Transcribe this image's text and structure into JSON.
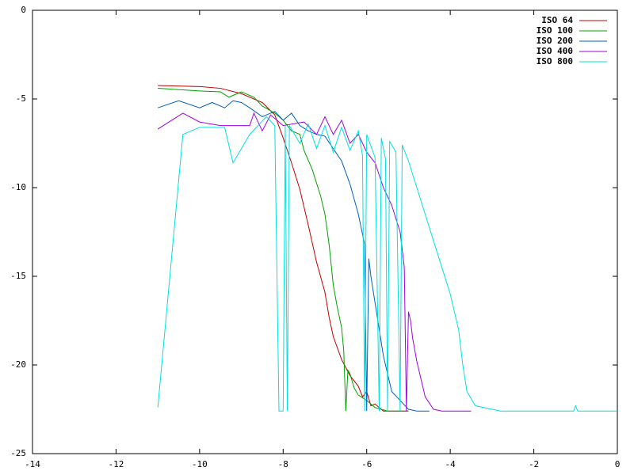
{
  "chart_data": {
    "type": "line",
    "xlim": [
      -14,
      0
    ],
    "ylim": [
      -25,
      0
    ],
    "xticks": [
      -14,
      -12,
      -10,
      -8,
      -6,
      -4,
      -2,
      0
    ],
    "yticks": [
      -25,
      -20,
      -15,
      -10,
      -5,
      0
    ],
    "legend": "top-right",
    "series": [
      {
        "name": "ISO 64",
        "color": "#c00000",
        "x": [
          -11,
          -10,
          -9.5,
          -9,
          -8.5,
          -8.2,
          -8,
          -7.8,
          -7.6,
          -7.4,
          -7.2,
          -7,
          -6.9,
          -6.8,
          -6.6,
          -6.4,
          -6.2,
          -6.1,
          -6,
          -5.9,
          -5.8,
          -5.6,
          -5
        ],
        "values": [
          -4.24,
          -4.3,
          -4.4,
          -4.7,
          -5.2,
          -5.9,
          -7.2,
          -8.6,
          -10.1,
          -12.1,
          -14.2,
          -15.9,
          -17.3,
          -18.4,
          -19.7,
          -20.6,
          -21.2,
          -21.8,
          -21.5,
          -22.3,
          -22.2,
          -22.6,
          -22.6
        ]
      },
      {
        "name": "ISO 100",
        "color": "#00a000",
        "x": [
          -11,
          -10,
          -9.5,
          -9.3,
          -9,
          -8.7,
          -8.5,
          -8.2,
          -8,
          -7.8,
          -7.6,
          -7.5,
          -7.3,
          -7.1,
          -7,
          -6.9,
          -6.8,
          -6.7,
          -6.6,
          -6.55,
          -6.5,
          -6.45,
          -6.4,
          -6.3,
          -6.2,
          -6,
          -5.8,
          -5.5,
          -5
        ],
        "values": [
          -4.4,
          -4.55,
          -4.6,
          -4.9,
          -4.6,
          -4.9,
          -5.4,
          -5.8,
          -6.2,
          -6.8,
          -7,
          -7.9,
          -9,
          -10.5,
          -11.5,
          -13.2,
          -15.5,
          -16.8,
          -17.9,
          -19.2,
          -22.6,
          -20.3,
          -20.5,
          -21.3,
          -21.7,
          -22,
          -22.4,
          -22.6,
          -22.6
        ]
      },
      {
        "name": "ISO 200",
        "color": "#0060c0",
        "x": [
          -11,
          -10.5,
          -10,
          -9.7,
          -9.4,
          -9.2,
          -9,
          -8.8,
          -8.5,
          -8.2,
          -8,
          -7.8,
          -7.6,
          -7.4,
          -7.2,
          -7,
          -6.8,
          -6.6,
          -6.4,
          -6.2,
          -6.05,
          -6,
          -5.95,
          -5.9,
          -5.8,
          -5.7,
          -5.6,
          -5.5,
          -5.4,
          -5.2,
          -5,
          -4.8,
          -4.5
        ],
        "values": [
          -5.5,
          -5.1,
          -5.5,
          -5.2,
          -5.5,
          -5.1,
          -5.2,
          -5.5,
          -6,
          -5.7,
          -6.2,
          -5.8,
          -6.5,
          -6.8,
          -7,
          -7.1,
          -7.8,
          -8.5,
          -9.8,
          -11.5,
          -13.2,
          -22.6,
          -14,
          -15,
          -16.5,
          -18,
          -19.5,
          -20.5,
          -21.5,
          -22,
          -22.5,
          -22.6,
          -22.6
        ]
      },
      {
        "name": "ISO 400",
        "color": "#a000e0",
        "x": [
          -11,
          -10.4,
          -10,
          -9.5,
          -8.8,
          -8.7,
          -8.5,
          -8.3,
          -8,
          -7.5,
          -7.2,
          -7,
          -6.8,
          -6.6,
          -6.4,
          -6.2,
          -6,
          -5.8,
          -5.6,
          -5.4,
          -5.2,
          -5.1,
          -5.05,
          -5,
          -4.95,
          -4.9,
          -4.8,
          -4.7,
          -4.6,
          -4.4,
          -4.2,
          -3.5
        ],
        "values": [
          -6.7,
          -5.8,
          -6.3,
          -6.5,
          -6.5,
          -5.8,
          -6.8,
          -5.9,
          -6.5,
          -6.3,
          -7,
          -6,
          -7,
          -6.2,
          -7.5,
          -7,
          -8,
          -8.6,
          -10,
          -11,
          -12.5,
          -14.5,
          -22.6,
          -17,
          -17.5,
          -18.5,
          -19.8,
          -20.8,
          -21.8,
          -22.5,
          -22.6,
          -22.6
        ]
      },
      {
        "name": "ISO 800",
        "color": "#00e0e0",
        "x": [
          -11,
          -10.4,
          -10,
          -9.4,
          -9.2,
          -8.8,
          -8.4,
          -8.2,
          -8.1,
          -8,
          -7.95,
          -7.9,
          -7.85,
          -7.6,
          -7.4,
          -7.2,
          -7,
          -6.8,
          -6.6,
          -6.4,
          -6.2,
          -6.1,
          -6.05,
          -6,
          -5.8,
          -5.7,
          -5.65,
          -5.55,
          -5.5,
          -5.45,
          -5.3,
          -5.2,
          -5.15,
          -5,
          -4.8,
          -4.6,
          -4.4,
          -4.2,
          -4,
          -3.8,
          -3.7,
          -3.6,
          -3.4,
          -3,
          -2.8,
          -1.05,
          -1,
          -0.95,
          0
        ],
        "values": [
          -22.4,
          -7,
          -6.6,
          -6.6,
          -8.6,
          -7,
          -6,
          -6.5,
          -22.6,
          -22.6,
          -6.5,
          -22.6,
          -6.5,
          -7.5,
          -6.4,
          -7.8,
          -6.5,
          -8,
          -6.6,
          -7.9,
          -6.8,
          -8.2,
          -22.6,
          -7,
          -8.3,
          -22.6,
          -7.2,
          -8.4,
          -22.6,
          -7.4,
          -8,
          -22.6,
          -7.6,
          -8.5,
          -10,
          -11.5,
          -13,
          -14.5,
          -16,
          -18,
          -20,
          -21.5,
          -22.3,
          -22.5,
          -22.6,
          -22.6,
          -22.3,
          -22.6,
          -22.6
        ]
      }
    ]
  }
}
